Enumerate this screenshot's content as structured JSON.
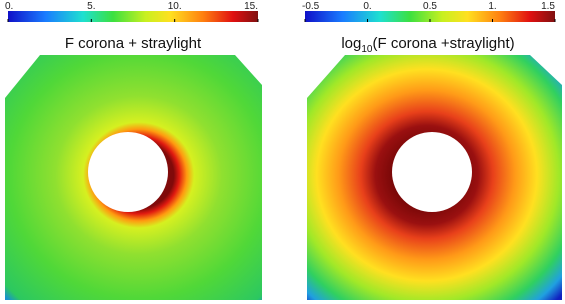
{
  "panels": [
    {
      "title": {
        "text": "F corona + straylight"
      },
      "colorbar": {
        "range": [
          0,
          15
        ],
        "ticks": [
          {
            "value": 0,
            "label": "0."
          },
          {
            "value": 5,
            "label": "5."
          },
          {
            "value": 10,
            "label": "10."
          },
          {
            "value": 15,
            "label": "15."
          }
        ]
      }
    },
    {
      "title": {
        "prefix": "log",
        "subscript": "10",
        "text": "(F corona +straylight)"
      },
      "colorbar": {
        "range": [
          -0.5,
          1.5
        ],
        "ticks": [
          {
            "value": -0.5,
            "label": "-0.5"
          },
          {
            "value": 0,
            "label": "0."
          },
          {
            "value": 0.5,
            "label": "0.5"
          },
          {
            "value": 1,
            "label": "1."
          },
          {
            "value": 1.5,
            "label": "1.5"
          }
        ]
      }
    }
  ]
}
